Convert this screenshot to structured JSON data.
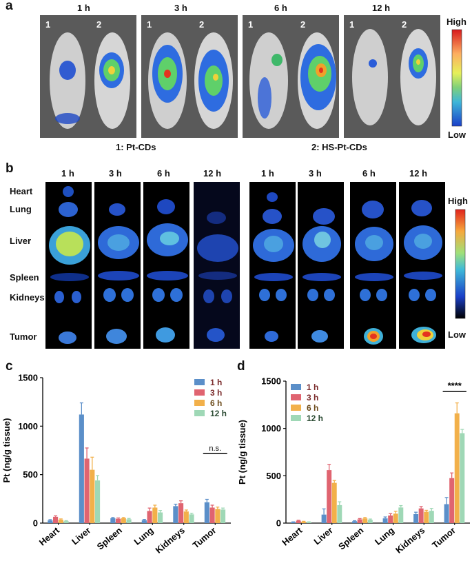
{
  "panel_a": {
    "letter": "a",
    "times": [
      "1 h",
      "3 h",
      "6 h",
      "12 h"
    ],
    "mouse_ids": [
      "1",
      "2"
    ],
    "legend_1": "1: Pt-CDs",
    "legend_2": "2: HS-Pt-CDs",
    "colorbar_high": "High",
    "colorbar_low": "Low"
  },
  "panel_b": {
    "letter": "b",
    "times": [
      "1 h",
      "3 h",
      "6 h",
      "12 h",
      "1 h",
      "3 h",
      "6 h",
      "12 h"
    ],
    "organs": [
      "Heart",
      "Lung",
      "Liver",
      "Spleen",
      "Kidneys",
      "Tumor"
    ],
    "colorbar_high": "High",
    "colorbar_low": "Low"
  },
  "chart_data": [
    {
      "panel": "c",
      "type": "bar",
      "title": "",
      "xlabel": "",
      "ylabel": "Pt (ng/g tissue)",
      "ylim": [
        0,
        1500
      ],
      "yticks": [
        0,
        500,
        1000,
        1500
      ],
      "categories": [
        "Heart",
        "Liver",
        "Spleen",
        "Lung",
        "Kidneys",
        "Tumor"
      ],
      "series": [
        {
          "name": "1 h",
          "color": "#5b8fc9",
          "values": [
            28,
            1120,
            50,
            30,
            175,
            215
          ],
          "errors": [
            8,
            120,
            8,
            8,
            20,
            30
          ]
        },
        {
          "name": "3 h",
          "color": "#e06470",
          "values": [
            65,
            665,
            45,
            125,
            205,
            160
          ],
          "errors": [
            10,
            110,
            8,
            30,
            25,
            25
          ]
        },
        {
          "name": "6 h",
          "color": "#f2b04a",
          "values": [
            35,
            550,
            50,
            160,
            120,
            145
          ],
          "errors": [
            8,
            130,
            8,
            25,
            15,
            20
          ]
        },
        {
          "name": "12 h",
          "color": "#9fd8b6",
          "values": [
            20,
            440,
            40,
            110,
            90,
            140
          ],
          "errors": [
            5,
            50,
            8,
            20,
            12,
            15
          ]
        }
      ],
      "annotation": "n.s."
    },
    {
      "panel": "d",
      "type": "bar",
      "title": "",
      "xlabel": "",
      "ylabel": "Pt (ng/g tissue)",
      "ylim": [
        0,
        1500
      ],
      "yticks": [
        0,
        500,
        1000,
        1500
      ],
      "categories": [
        "Heart",
        "Liver",
        "Spleen",
        "Lung",
        "Kidneys",
        "Tumor"
      ],
      "series": [
        {
          "name": "1 h",
          "color": "#5b8fc9",
          "values": [
            10,
            90,
            20,
            50,
            95,
            200
          ],
          "errors": [
            3,
            60,
            5,
            15,
            20,
            70
          ]
        },
        {
          "name": "3 h",
          "color": "#e06470",
          "values": [
            25,
            560,
            40,
            80,
            155,
            475
          ],
          "errors": [
            5,
            60,
            8,
            20,
            20,
            55
          ]
        },
        {
          "name": "6 h",
          "color": "#f2b04a",
          "values": [
            15,
            425,
            50,
            100,
            120,
            1160
          ],
          "errors": [
            4,
            25,
            10,
            25,
            15,
            110
          ]
        },
        {
          "name": "12 h",
          "color": "#9fd8b6",
          "values": [
            10,
            190,
            35,
            165,
            130,
            950
          ],
          "errors": [
            3,
            35,
            8,
            20,
            25,
            40
          ]
        }
      ],
      "annotation": "****"
    }
  ]
}
